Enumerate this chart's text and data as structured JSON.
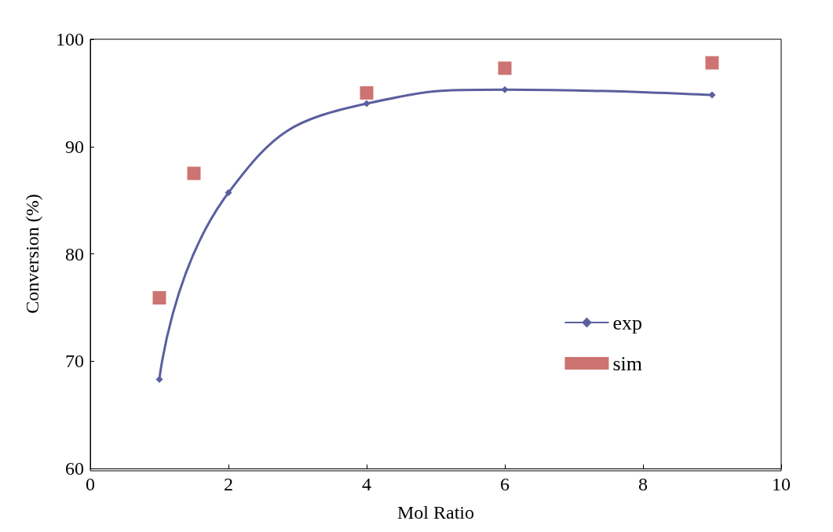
{
  "chart_data": {
    "type": "line",
    "xlabel": "Mol Ratio",
    "ylabel": "Conversion (%)",
    "xlim": [
      0,
      10
    ],
    "xticks": [
      0,
      2,
      4,
      6,
      8,
      10
    ],
    "ylim": [
      60,
      100
    ],
    "yticks": [
      60,
      70,
      80,
      90,
      100
    ],
    "grid": false,
    "legend": "right",
    "series": [
      {
        "name": "exp",
        "color": "#5a5f9e",
        "marker": "diamond",
        "x": [
          1,
          2,
          4,
          6,
          9
        ],
        "values": [
          68.3,
          85.7,
          94.0,
          95.3,
          94.8
        ]
      },
      {
        "name": "sim",
        "type": "scatter",
        "color": "#c0504d",
        "marker": "square",
        "x": [
          1,
          1.5,
          4,
          6,
          9
        ],
        "values": [
          75.9,
          87.5,
          95.0,
          97.3,
          97.8
        ]
      }
    ]
  }
}
